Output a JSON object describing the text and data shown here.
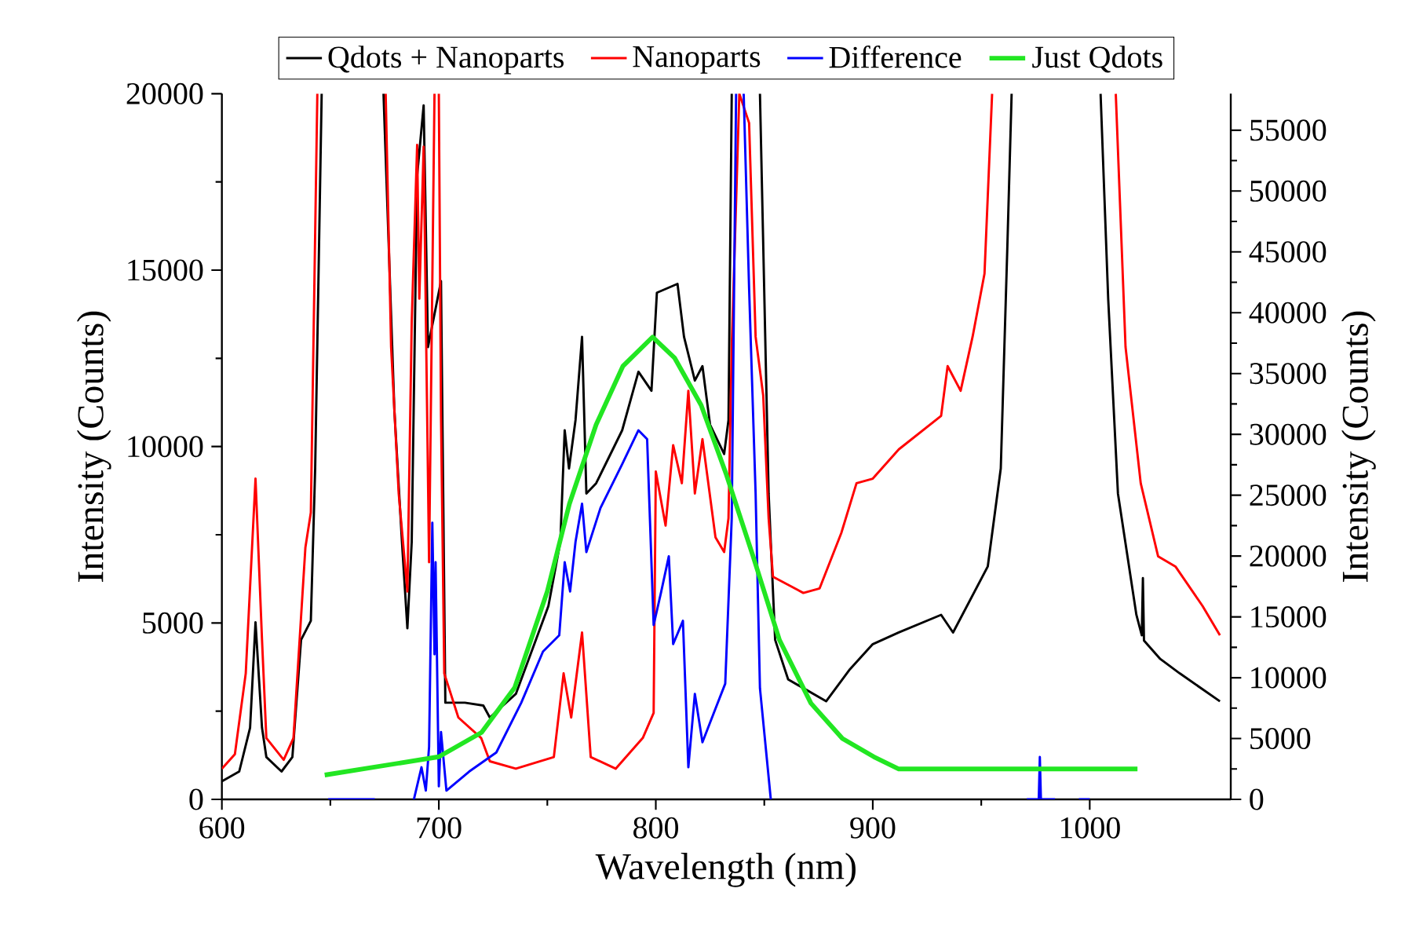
{
  "chart_data": {
    "type": "line",
    "xlabel": "Wavelength (nm)",
    "ylabel": "Intensity (Counts)",
    "y2label": "Intensity (Counts)",
    "xlim": [
      600,
      1065
    ],
    "xticks": [
      600,
      700,
      800,
      900,
      1000
    ],
    "ylim": [
      0,
      20000
    ],
    "yticks": [
      0,
      5000,
      10000,
      15000,
      20000
    ],
    "y2lim": [
      0,
      58000
    ],
    "y2ticks": [
      0,
      5000,
      10000,
      15000,
      20000,
      25000,
      30000,
      35000,
      40000,
      45000,
      50000,
      55000
    ],
    "legend": "top",
    "marker": "none",
    "line_style": "solid",
    "series": [
      {
        "name": "Qdots + Nanoparts",
        "color": "#000000",
        "x": [
          600,
          608,
          613,
          615.5,
          618.5,
          620.5,
          627.5,
          632.5,
          636.5,
          641,
          643,
          646,
          660,
          674.5,
          679.5,
          683,
          685.5,
          687.5,
          690,
          693,
          695,
          701,
          703,
          712,
          720.5,
          723.5,
          735.5,
          750.5,
          756,
          758,
          760,
          763,
          766,
          768,
          772.5,
          784.5,
          792,
          798,
          800.5,
          810,
          813,
          818,
          821.5,
          825,
          831.5,
          833.5,
          835,
          840,
          848,
          852,
          855,
          861,
          878.5,
          889.5,
          900,
          912,
          931.5,
          937,
          953,
          959,
          962,
          964,
          985,
          1005,
          1008.5,
          1013,
          1021.5,
          1024,
          1024.5,
          1025,
          1032.5,
          1041.5,
          1060
        ],
        "values": [
          510,
          790,
          2030,
          5020,
          2030,
          1200,
          790,
          1200,
          4520,
          5060,
          9380,
          20000,
          null,
          20000,
          11040,
          7300,
          4850,
          7300,
          17680,
          19670,
          12820,
          14690,
          2740,
          2740,
          2660,
          2320,
          2990,
          5480,
          7300,
          10460,
          9380,
          10750,
          13110,
          8670,
          8960,
          10460,
          12120,
          11580,
          14360,
          14610,
          13110,
          11870,
          12280,
          10620,
          9790,
          10750,
          20000,
          null,
          20000,
          8670,
          4520,
          3400,
          2780,
          3690,
          4400,
          4730,
          5230,
          4730,
          6600,
          9380,
          15600,
          20000,
          null,
          20000,
          14190,
          8670,
          5230,
          4650,
          6270,
          4500,
          3980,
          3570,
          2780
        ]
      },
      {
        "name": "Nanoparts",
        "color": "#ff0000",
        "x": [
          600,
          606,
          611,
          615.5,
          618.5,
          620.5,
          628.5,
          633,
          638.5,
          641,
          644,
          660,
          675.5,
          678,
          681.5,
          685.5,
          687.5,
          690,
          691,
          693,
          695.5,
          698,
          699,
          700,
          701,
          702.5,
          709,
          719.5,
          723.5,
          735.5,
          753,
          757.5,
          761,
          766,
          770,
          781.5,
          794,
          799,
          800,
          804.5,
          808,
          812,
          815,
          818,
          821.5,
          827.5,
          831.5,
          833.5,
          835,
          838.5,
          843,
          846,
          849.5,
          852,
          854,
          868,
          875.5,
          885.5,
          892.5,
          900,
          912,
          931.5,
          934.5,
          940.5,
          946,
          951.5,
          955,
          985,
          1012,
          1016.5,
          1023.5,
          1031.5,
          1039.5,
          1052,
          1060
        ],
        "values": [
          870,
          1280,
          3570,
          9090,
          4520,
          1740,
          1120,
          1740,
          7140,
          8130,
          20000,
          null,
          20000,
          12820,
          8670,
          5890,
          13530,
          18550,
          14190,
          18500,
          6720,
          20000,
          null,
          20000,
          10870,
          3570,
          2320,
          1740,
          1080,
          870,
          1200,
          3570,
          2320,
          4730,
          1200,
          870,
          1740,
          2450,
          9290,
          7760,
          10040,
          8960,
          11580,
          8670,
          10210,
          7430,
          7010,
          7970,
          12820,
          20000,
          19170,
          13110,
          11450,
          7970,
          6310,
          5850,
          5980,
          7550,
          8960,
          9090,
          9920,
          10870,
          12280,
          11580,
          13110,
          14900,
          20000,
          null,
          20000,
          12820,
          8960,
          6890,
          6600,
          5480,
          4650
        ]
      },
      {
        "name": "Difference",
        "color": "#0000ff",
        "x": [
          649,
          670.5,
          680,
          688.5,
          692,
          694,
          695.5,
          697,
          698,
          698.5,
          700,
          701,
          703.5,
          714,
          726.5,
          738,
          748,
          755.5,
          758,
          760.5,
          763,
          766,
          768,
          774.5,
          784.5,
          792,
          796,
          799,
          802.5,
          806,
          808,
          812.5,
          815,
          818,
          821.5,
          827.5,
          832,
          835,
          837,
          838.5,
          840.5,
          843,
          846,
          848,
          853,
          960,
          971,
          976.5,
          977,
          977.5,
          984,
          990,
          995,
          1000
        ],
        "values": [
          0,
          0,
          null,
          0,
          910,
          250,
          1490,
          7840,
          4110,
          6720,
          370,
          1910,
          250,
          790,
          1330,
          2740,
          4190,
          4650,
          6720,
          5890,
          7300,
          8380,
          7010,
          8260,
          9500,
          10460,
          10210,
          4940,
          5890,
          6890,
          4400,
          5060,
          910,
          2990,
          1620,
          2570,
          3280,
          7970,
          20000,
          null,
          20000,
          14480,
          8670,
          3150,
          0,
          null,
          0,
          0,
          1200,
          0,
          0,
          null,
          0,
          0
        ]
      },
      {
        "name": "Just Qdots",
        "color": "#22e622",
        "axis": "y2",
        "x": [
          647.4,
          700,
          719.7,
          735,
          750,
          760.2,
          772.5,
          784.8,
          798.5,
          808.6,
          820.9,
          832.5,
          844.8,
          857,
          871.5,
          886,
          900.5,
          912,
          1022
        ],
        "values": [
          2000,
          3500,
          5500,
          9200,
          17100,
          24300,
          30800,
          35600,
          38000,
          36300,
          32400,
          26700,
          20000,
          13100,
          7900,
          5000,
          3500,
          2500,
          2500
        ]
      }
    ]
  }
}
